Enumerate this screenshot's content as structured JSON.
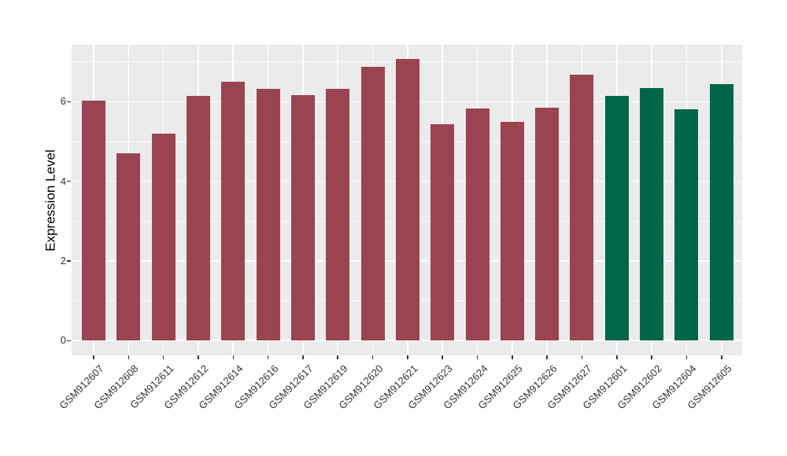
{
  "chart_data": {
    "type": "bar",
    "title": "",
    "xlabel": "",
    "ylabel": "Expression Level",
    "categories": [
      "GSM912607",
      "GSM912608",
      "GSM912611",
      "GSM912612",
      "GSM912614",
      "GSM912616",
      "GSM912617",
      "GSM912619",
      "GSM912620",
      "GSM912621",
      "GSM912623",
      "GSM912624",
      "GSM912625",
      "GSM912626",
      "GSM912627",
      "GSM912601",
      "GSM912602",
      "GSM912604",
      "GSM912605"
    ],
    "values": [
      6.02,
      4.7,
      5.2,
      6.15,
      6.5,
      6.33,
      6.17,
      6.33,
      6.88,
      7.08,
      5.44,
      5.84,
      5.49,
      5.86,
      6.67,
      6.14,
      6.34,
      5.82,
      6.45
    ],
    "groups": [
      "maroon",
      "maroon",
      "maroon",
      "maroon",
      "maroon",
      "maroon",
      "maroon",
      "maroon",
      "maroon",
      "maroon",
      "maroon",
      "maroon",
      "maroon",
      "maroon",
      "maroon",
      "green",
      "green",
      "green",
      "green"
    ],
    "palette": {
      "maroon": "#9B4451",
      "green": "#006649"
    },
    "y_tick_labels": [
      "0",
      "2",
      "4",
      "6"
    ],
    "y_major_ticks": [
      0,
      2,
      4,
      6
    ],
    "y_minor_gridlines": [
      1,
      3,
      5,
      7
    ],
    "ylim": [
      -0.37,
      7.43
    ],
    "panel_bg": "#EBEBEB",
    "grid_color": "#FFFFFF",
    "axis_text_color": "#333333",
    "legend": "none",
    "grid": "on"
  }
}
